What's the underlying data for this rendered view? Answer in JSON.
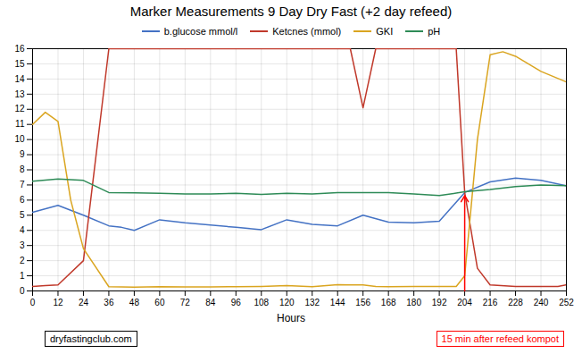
{
  "chart_data": {
    "type": "line",
    "title": "Marker Measurements 9 Day Dry Fast (+2 day refeed)",
    "x_label": "Hours",
    "xlim": [
      0,
      252
    ],
    "ylim": [
      0,
      16
    ],
    "xticks": [
      0,
      12,
      24,
      36,
      48,
      60,
      72,
      84,
      96,
      108,
      120,
      132,
      144,
      156,
      168,
      180,
      192,
      204,
      216,
      228,
      240,
      252
    ],
    "yticks": [
      0,
      1,
      2,
      3,
      4,
      5,
      6,
      7,
      8,
      9,
      10,
      11,
      12,
      13,
      14,
      15,
      16
    ],
    "grid": true,
    "legend": "top",
    "series": [
      {
        "name": "b.glucose mmol/l",
        "color": "#4472C4",
        "x": [
          0,
          12,
          24,
          36,
          42,
          48,
          60,
          72,
          84,
          96,
          108,
          120,
          132,
          144,
          156,
          168,
          180,
          192,
          204,
          216,
          228,
          240,
          252
        ],
        "values": [
          5.2,
          5.65,
          5.0,
          4.3,
          4.2,
          4.0,
          4.7,
          4.5,
          4.35,
          4.2,
          4.05,
          4.7,
          4.4,
          4.3,
          5.0,
          4.55,
          4.5,
          4.6,
          6.5,
          7.2,
          7.45,
          7.3,
          6.95
        ]
      },
      {
        "name": "Ketcnes (mmol)",
        "color": "#C0392B",
        "x": [
          0,
          6,
          12,
          24,
          36,
          48,
          60,
          72,
          84,
          96,
          108,
          120,
          132,
          144,
          150,
          156,
          162,
          168,
          180,
          192,
          200,
          204,
          210,
          216,
          228,
          240,
          248,
          252
        ],
        "values": [
          0.3,
          0.35,
          0.4,
          2.0,
          16.0,
          16.0,
          16.0,
          16.0,
          16.0,
          16.0,
          16.0,
          16.0,
          16.0,
          16.0,
          16.0,
          12.1,
          16.0,
          16.0,
          16.0,
          16.0,
          16.0,
          6.5,
          1.5,
          0.4,
          0.3,
          0.3,
          0.3,
          0.4
        ]
      },
      {
        "name": "GKI",
        "color": "#DAA520",
        "x": [
          0,
          6,
          12,
          18,
          24,
          36,
          48,
          60,
          72,
          84,
          96,
          108,
          120,
          132,
          144,
          150,
          156,
          162,
          168,
          180,
          192,
          200,
          204,
          210,
          216,
          222,
          228,
          234,
          240,
          252
        ],
        "values": [
          11.0,
          11.8,
          11.2,
          6.0,
          2.8,
          0.28,
          0.25,
          0.28,
          0.27,
          0.27,
          0.28,
          0.3,
          0.35,
          0.28,
          0.42,
          0.4,
          0.4,
          0.3,
          0.28,
          0.3,
          0.3,
          0.3,
          1.0,
          10.0,
          15.6,
          15.8,
          15.5,
          15.0,
          14.5,
          13.8
        ]
      },
      {
        "name": "pH",
        "color": "#2E8B57",
        "x": [
          0,
          12,
          24,
          36,
          48,
          60,
          72,
          84,
          96,
          108,
          120,
          132,
          144,
          156,
          168,
          180,
          192,
          204,
          216,
          228,
          240,
          252
        ],
        "values": [
          7.25,
          7.4,
          7.3,
          6.5,
          6.48,
          6.45,
          6.4,
          6.4,
          6.45,
          6.38,
          6.45,
          6.4,
          6.5,
          6.5,
          6.5,
          6.4,
          6.3,
          6.55,
          6.7,
          6.9,
          7.0,
          6.95
        ]
      }
    ],
    "annotations": [
      {
        "text": "15 min after refeed kompot",
        "x": 204,
        "y": 6.3,
        "color": "red"
      },
      {
        "text": "dryfastingclub.com"
      }
    ]
  }
}
